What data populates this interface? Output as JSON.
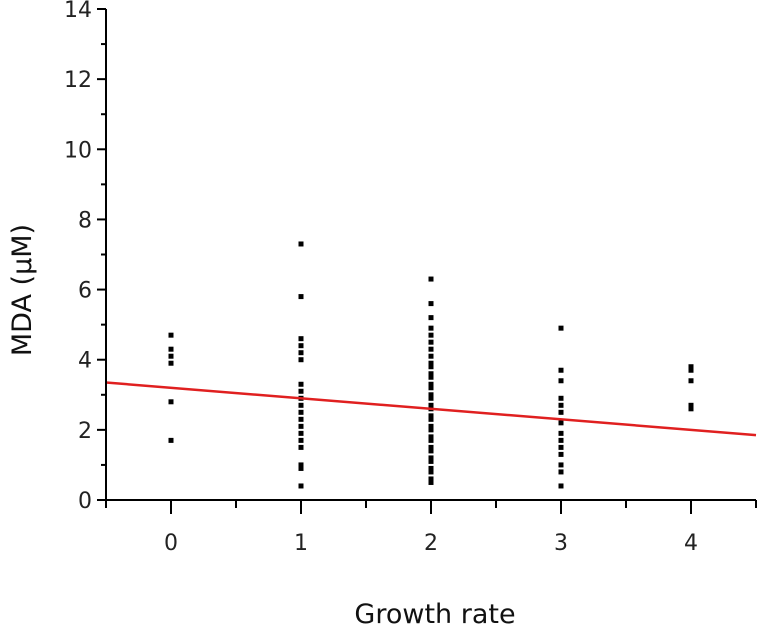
{
  "chart_data": {
    "type": "scatter",
    "title": "",
    "xlabel": "Growth rate",
    "ylabel": "MDA (μM)",
    "xlim": [
      -0.5,
      4.5
    ],
    "ylim": [
      0,
      14
    ],
    "xticks": [
      0,
      1,
      2,
      3,
      4
    ],
    "yticks": [
      0,
      2,
      4,
      6,
      8,
      10,
      12,
      14
    ],
    "grid": false,
    "colors": {
      "points": "#000000",
      "fit_line": "#e02020",
      "axis": "#000000"
    },
    "series": [
      {
        "type": "scatter",
        "points": [
          {
            "x": 0,
            "y": 4.7
          },
          {
            "x": 0,
            "y": 4.3
          },
          {
            "x": 0,
            "y": 4.1
          },
          {
            "x": 0,
            "y": 3.9
          },
          {
            "x": 0,
            "y": 2.8
          },
          {
            "x": 0,
            "y": 1.7
          },
          {
            "x": 1,
            "y": 7.3
          },
          {
            "x": 1,
            "y": 5.8
          },
          {
            "x": 1,
            "y": 4.6
          },
          {
            "x": 1,
            "y": 4.4
          },
          {
            "x": 1,
            "y": 4.2
          },
          {
            "x": 1,
            "y": 4.0
          },
          {
            "x": 1,
            "y": 3.3
          },
          {
            "x": 1,
            "y": 3.1
          },
          {
            "x": 1,
            "y": 2.9
          },
          {
            "x": 1,
            "y": 2.7
          },
          {
            "x": 1,
            "y": 2.5
          },
          {
            "x": 1,
            "y": 2.3
          },
          {
            "x": 1,
            "y": 2.1
          },
          {
            "x": 1,
            "y": 1.9
          },
          {
            "x": 1,
            "y": 1.7
          },
          {
            "x": 1,
            "y": 1.5
          },
          {
            "x": 1,
            "y": 1.0
          },
          {
            "x": 1,
            "y": 0.9
          },
          {
            "x": 1,
            "y": 0.4
          },
          {
            "x": 2,
            "y": 6.3
          },
          {
            "x": 2,
            "y": 5.6
          },
          {
            "x": 2,
            "y": 5.2
          },
          {
            "x": 2,
            "y": 4.9
          },
          {
            "x": 2,
            "y": 4.7
          },
          {
            "x": 2,
            "y": 4.5
          },
          {
            "x": 2,
            "y": 4.3
          },
          {
            "x": 2,
            "y": 4.1
          },
          {
            "x": 2,
            "y": 3.9
          },
          {
            "x": 2,
            "y": 3.8
          },
          {
            "x": 2,
            "y": 3.6
          },
          {
            "x": 2,
            "y": 3.5
          },
          {
            "x": 2,
            "y": 3.3
          },
          {
            "x": 2,
            "y": 3.2
          },
          {
            "x": 2,
            "y": 3.0
          },
          {
            "x": 2,
            "y": 2.9
          },
          {
            "x": 2,
            "y": 2.7
          },
          {
            "x": 2,
            "y": 2.6
          },
          {
            "x": 2,
            "y": 2.4
          },
          {
            "x": 2,
            "y": 2.3
          },
          {
            "x": 2,
            "y": 2.1
          },
          {
            "x": 2,
            "y": 2.0
          },
          {
            "x": 2,
            "y": 1.8
          },
          {
            "x": 2,
            "y": 1.7
          },
          {
            "x": 2,
            "y": 1.5
          },
          {
            "x": 2,
            "y": 1.4
          },
          {
            "x": 2,
            "y": 1.2
          },
          {
            "x": 2,
            "y": 1.1
          },
          {
            "x": 2,
            "y": 0.9
          },
          {
            "x": 2,
            "y": 0.8
          },
          {
            "x": 2,
            "y": 0.6
          },
          {
            "x": 2,
            "y": 0.5
          },
          {
            "x": 3,
            "y": 4.9
          },
          {
            "x": 3,
            "y": 3.7
          },
          {
            "x": 3,
            "y": 3.4
          },
          {
            "x": 3,
            "y": 2.9
          },
          {
            "x": 3,
            "y": 2.7
          },
          {
            "x": 3,
            "y": 2.5
          },
          {
            "x": 3,
            "y": 2.2
          },
          {
            "x": 3,
            "y": 1.9
          },
          {
            "x": 3,
            "y": 1.7
          },
          {
            "x": 3,
            "y": 1.5
          },
          {
            "x": 3,
            "y": 1.3
          },
          {
            "x": 3,
            "y": 1.0
          },
          {
            "x": 3,
            "y": 0.8
          },
          {
            "x": 3,
            "y": 0.4
          },
          {
            "x": 4,
            "y": 3.8
          },
          {
            "x": 4,
            "y": 3.7
          },
          {
            "x": 4,
            "y": 3.4
          },
          {
            "x": 4,
            "y": 2.7
          },
          {
            "x": 4,
            "y": 2.6
          }
        ]
      },
      {
        "type": "line",
        "points": [
          {
            "x": -0.5,
            "y": 3.35
          },
          {
            "x": 4.5,
            "y": 1.85
          }
        ]
      }
    ]
  }
}
